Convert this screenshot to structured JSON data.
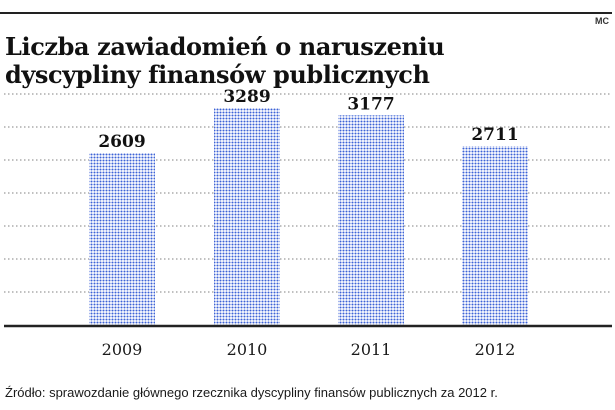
{
  "credit": "MC",
  "title_lines": [
    "Liczba zawiadomień o naruszeniu",
    "dyscypliny finansów publicznych"
  ],
  "source": "Źródło: sprawozdanie głównego rzecznika dyscypliny finansów publicznych za 2012 r.",
  "colors": {
    "bar_dot": "#3d63d6",
    "gridline": "#9a9a9a",
    "axis": "#222222"
  },
  "chart_data": {
    "type": "bar",
    "title": "Liczba zawiadomień o naruszeniu dyscypliny finansów publicznych",
    "categories": [
      "2009",
      "2010",
      "2011",
      "2012"
    ],
    "values": [
      2609,
      3289,
      3177,
      2711
    ],
    "value_labels": [
      "2609",
      "3289",
      "3177",
      "2711"
    ],
    "xlabel": "",
    "ylabel": "",
    "ylim": [
      0,
      3500
    ],
    "grid": true,
    "legend": "none"
  }
}
